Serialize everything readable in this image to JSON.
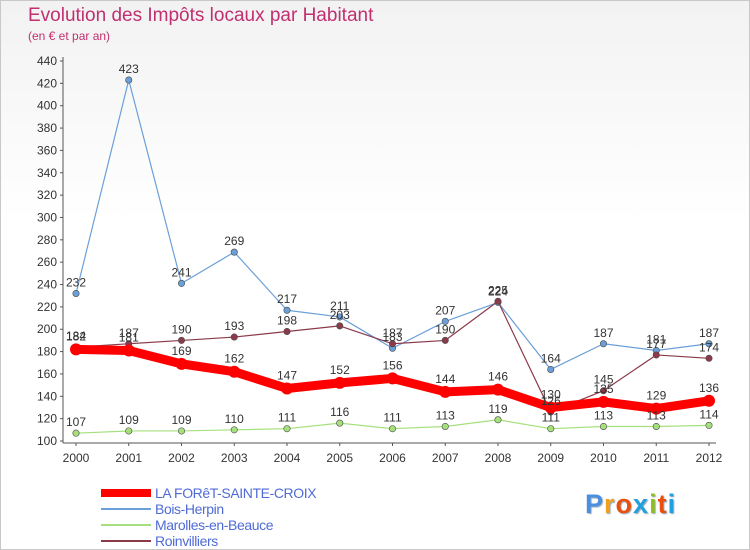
{
  "header": {
    "title": "Evolution des Impôts locaux par Habitant",
    "subtitle": "(en € et par an)"
  },
  "logo": {
    "text": "Proxiti",
    "letter_colors": [
      "#4a8fe0",
      "#f0a020",
      "#e85010",
      "#20a0e0",
      "#90c020",
      "#e85010",
      "#20a0e0"
    ]
  },
  "chart_data": {
    "type": "line",
    "x": [
      "2000",
      "2001",
      "2002",
      "2003",
      "2004",
      "2005",
      "2006",
      "2007",
      "2008",
      "2009",
      "2010",
      "2011",
      "2012"
    ],
    "ylim": [
      100,
      440
    ],
    "yticks": [
      100,
      120,
      140,
      160,
      180,
      200,
      220,
      240,
      260,
      280,
      300,
      320,
      340,
      360,
      380,
      400,
      420,
      440
    ],
    "grid": false,
    "legend_position": "bottom-left",
    "series": [
      {
        "name": "LA FORêT-SAINTE-CROIX",
        "color": "#ff0000",
        "values": [
          182,
          181,
          169,
          162,
          147,
          152,
          156,
          144,
          146,
          130,
          135,
          129,
          136
        ]
      },
      {
        "name": "Bois-Herpin",
        "color": "#6b9fd8",
        "values": [
          232,
          423,
          241,
          269,
          217,
          211,
          183,
          207,
          224,
          164,
          187,
          181,
          187
        ]
      },
      {
        "name": "Marolles-en-Beauce",
        "color": "#a6e07c",
        "values": [
          107,
          109,
          109,
          110,
          111,
          116,
          111,
          113,
          119,
          111,
          113,
          113,
          114
        ]
      },
      {
        "name": "Roinvilliers",
        "color": "#8b3a4a",
        "values": [
          184,
          187,
          190,
          193,
          198,
          203,
          187,
          190,
          225,
          126,
          145,
          177,
          174
        ]
      }
    ]
  }
}
